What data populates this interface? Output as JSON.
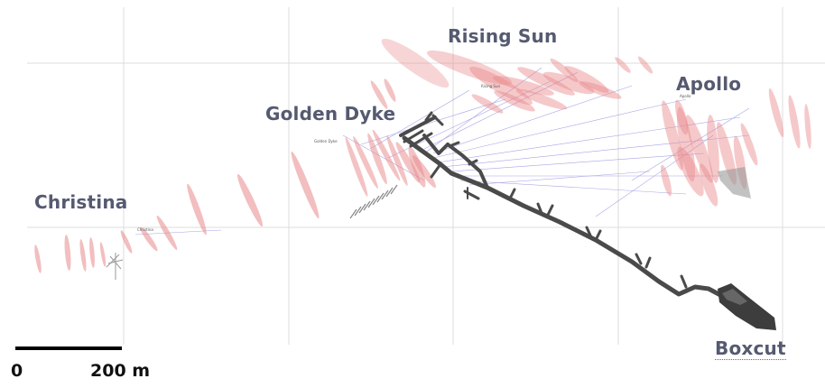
{
  "map": {
    "deposits": [
      {
        "name": "Christina",
        "small_label": "Christina"
      },
      {
        "name": "Golden Dyke",
        "small_label": "Golden Dyke"
      },
      {
        "name": "Rising Sun",
        "small_label": "Rising Sun"
      },
      {
        "name": "Apollo",
        "small_label": "Apollo"
      },
      {
        "name": "Boxcut"
      }
    ],
    "scale_bar": {
      "start_label": "0",
      "end_label": "200 m"
    },
    "colors": {
      "orebody": "#e8888a",
      "drillhole": "#7a7ad8",
      "decline": "#444444",
      "grid": "#d9d9d9",
      "label": "#555a70"
    }
  }
}
